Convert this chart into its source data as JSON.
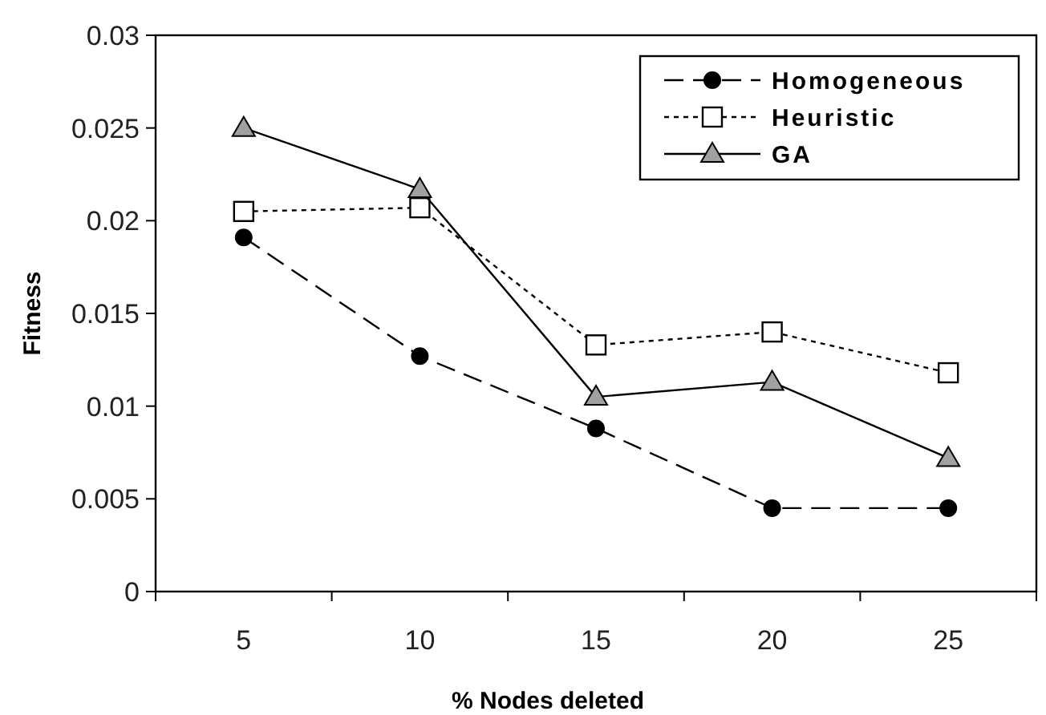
{
  "chart_data": {
    "type": "line",
    "xlabel": "% Nodes deleted",
    "ylabel": "Fitness",
    "categories": [
      "5",
      "10",
      "15",
      "20",
      "25"
    ],
    "ylim": [
      0,
      0.03
    ],
    "yticks": [
      0,
      0.005,
      0.01,
      0.015,
      0.02,
      0.025,
      0.03
    ],
    "grid": false,
    "legend": "top right",
    "series": [
      {
        "name": "Homogeneous",
        "color": "#000000",
        "marker": "circle",
        "line_style": "dashed",
        "values": [
          0.0191,
          0.0127,
          0.0088,
          0.0045,
          0.0045
        ]
      },
      {
        "name": "Heuristic",
        "color": "#000000",
        "marker": "square",
        "line_style": "dotted",
        "values": [
          0.0205,
          0.0207,
          0.0133,
          0.014,
          0.0118
        ]
      },
      {
        "name": "GA",
        "color": "#000000",
        "marker": "triangle",
        "line_style": "solid",
        "values": [
          0.025,
          0.0217,
          0.0105,
          0.0113,
          0.0072
        ]
      }
    ]
  }
}
